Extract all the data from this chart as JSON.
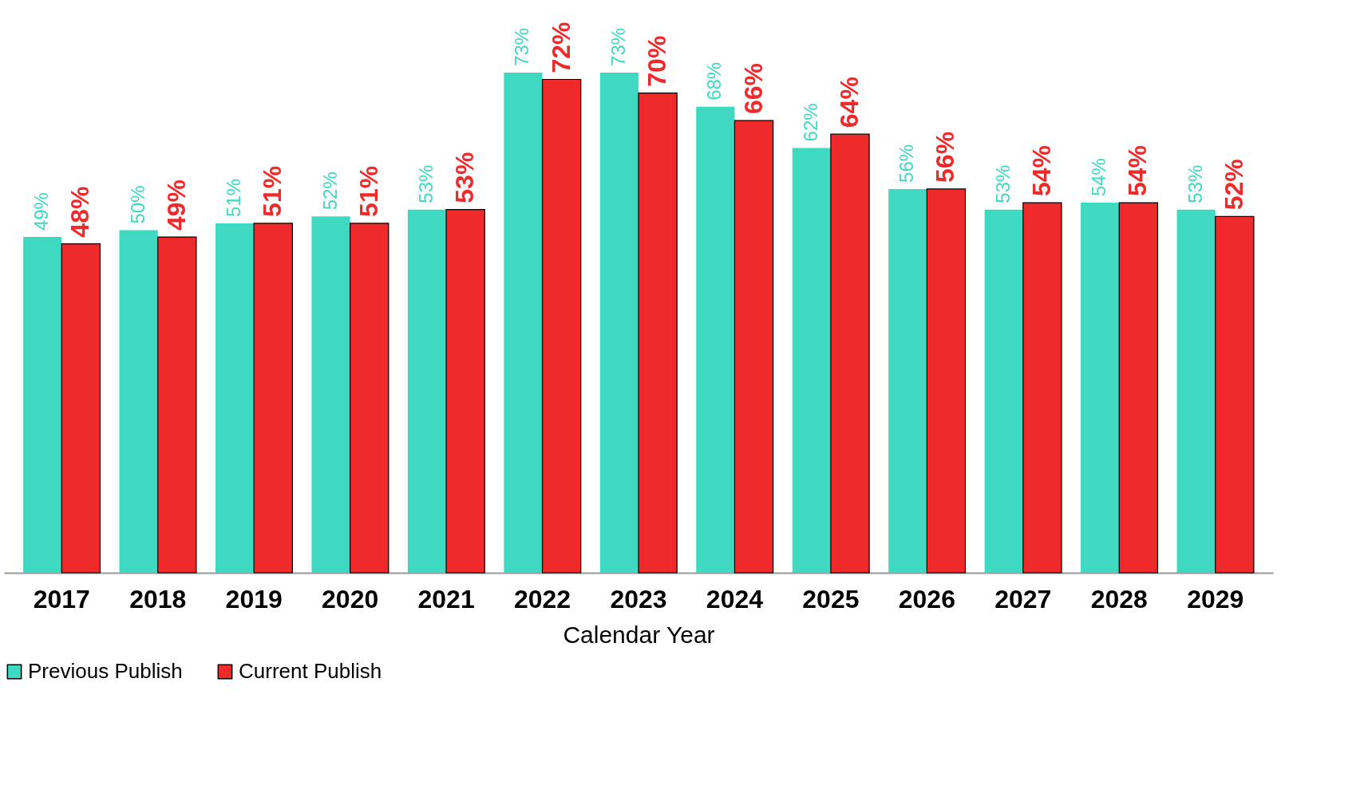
{
  "chart_data": {
    "type": "bar",
    "xlabel": "Calendar Year",
    "categories": [
      "2017",
      "2018",
      "2019",
      "2020",
      "2021",
      "2022",
      "2023",
      "2024",
      "2025",
      "2026",
      "2027",
      "2028",
      "2029"
    ],
    "series": [
      {
        "name": "Previous Publish",
        "color": "#3fd9c1",
        "values": [
          49,
          50,
          51,
          52,
          53,
          73,
          73,
          68,
          62,
          56,
          53,
          54,
          53
        ],
        "value_labels": [
          "49%",
          "50%",
          "51%",
          "52%",
          "53%",
          "73%",
          "73%",
          "68%",
          "62%",
          "56%",
          "53%",
          "54%",
          "53%"
        ]
      },
      {
        "name": "Current Publish",
        "color": "#ee2a2a",
        "values": [
          48,
          49,
          51,
          51,
          53,
          72,
          70,
          66,
          64,
          56,
          54,
          54,
          52
        ],
        "value_labels": [
          "48%",
          "49%",
          "51%",
          "51%",
          "53%",
          "72%",
          "70%",
          "66%",
          "64%",
          "56%",
          "54%",
          "54%",
          "52%"
        ]
      }
    ],
    "ylim": [
      0,
      83
    ],
    "legend": "bottom",
    "grid": false
  }
}
